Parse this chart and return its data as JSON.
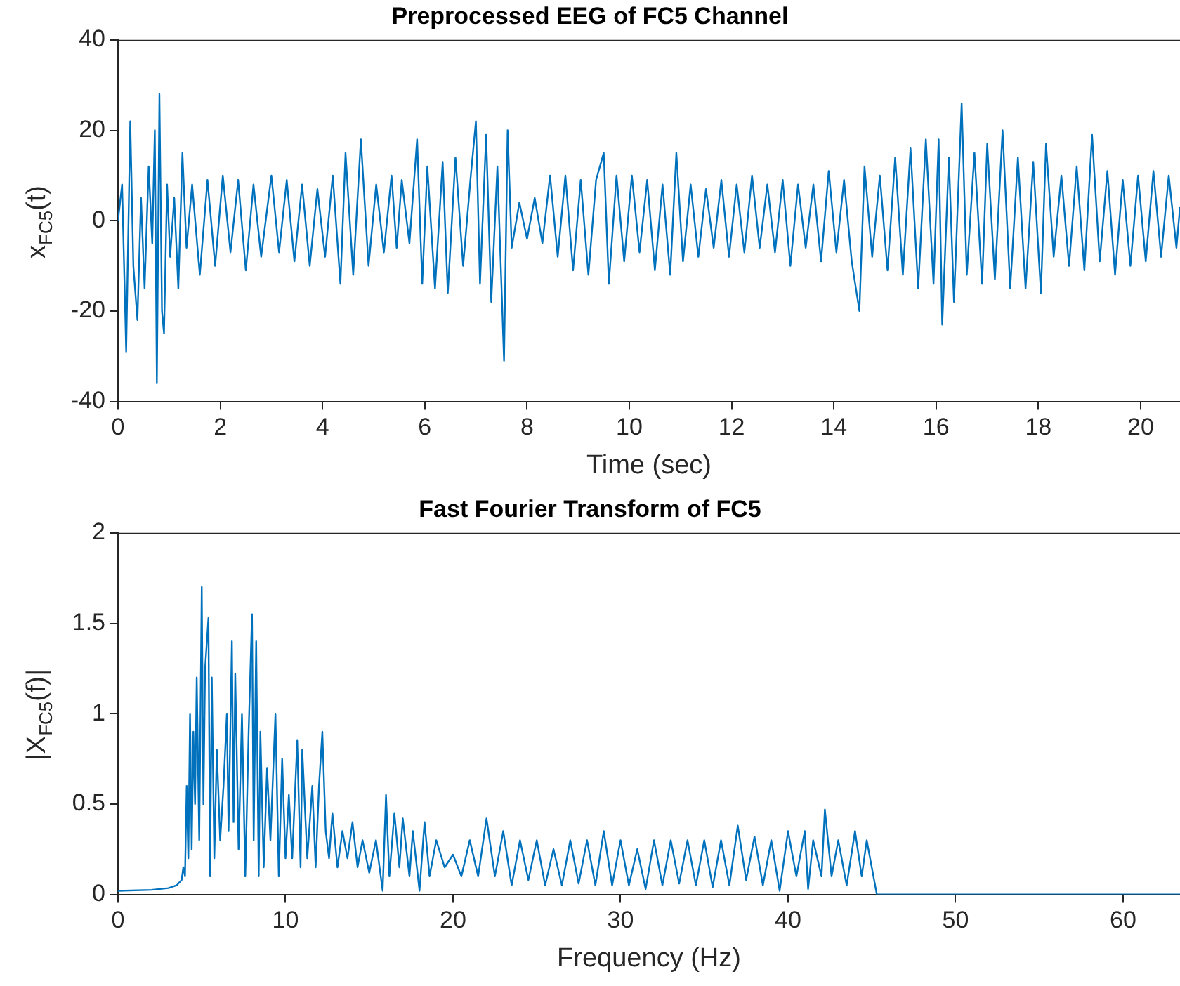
{
  "chart_data": [
    {
      "type": "line",
      "title": "Preprocessed EEG of FC5 Channel",
      "xlabel": "Time (sec)",
      "ylabel": "x$_{FC5}$(t)",
      "xlim": [
        0,
        20.77
      ],
      "ylim": [
        -40,
        40
      ],
      "xticks": [
        0,
        2,
        4,
        6,
        8,
        10,
        12,
        14,
        16,
        18,
        20
      ],
      "yticks": [
        -40,
        -20,
        0,
        20,
        40
      ],
      "grid": false,
      "marker": "none",
      "x": [
        0,
        0.08,
        0.16,
        0.24,
        0.3,
        0.38,
        0.45,
        0.52,
        0.6,
        0.67,
        0.72,
        0.76,
        0.81,
        0.86,
        0.9,
        0.96,
        1.02,
        1.1,
        1.18,
        1.26,
        1.34,
        1.45,
        1.6,
        1.75,
        1.9,
        2.05,
        2.2,
        2.35,
        2.5,
        2.65,
        2.8,
        3.0,
        3.15,
        3.3,
        3.45,
        3.6,
        3.75,
        3.9,
        4.05,
        4.2,
        4.35,
        4.45,
        4.6,
        4.75,
        4.9,
        5.05,
        5.2,
        5.35,
        5.45,
        5.55,
        5.7,
        5.85,
        5.95,
        6.05,
        6.2,
        6.35,
        6.45,
        6.6,
        6.75,
        6.9,
        7.0,
        7.08,
        7.2,
        7.3,
        7.42,
        7.55,
        7.62,
        7.7,
        7.85,
        8.0,
        8.15,
        8.3,
        8.45,
        8.6,
        8.75,
        8.9,
        9.05,
        9.2,
        9.35,
        9.5,
        9.6,
        9.75,
        9.9,
        10.05,
        10.2,
        10.35,
        10.5,
        10.65,
        10.8,
        10.92,
        11.05,
        11.2,
        11.35,
        11.5,
        11.65,
        11.8,
        11.95,
        12.1,
        12.25,
        12.4,
        12.55,
        12.7,
        12.85,
        13.0,
        13.15,
        13.3,
        13.45,
        13.6,
        13.75,
        13.9,
        14.05,
        14.2,
        14.35,
        14.5,
        14.6,
        14.75,
        14.9,
        15.05,
        15.2,
        15.35,
        15.5,
        15.65,
        15.8,
        15.95,
        16.05,
        16.12,
        16.25,
        16.35,
        16.5,
        16.6,
        16.75,
        16.9,
        17.0,
        17.15,
        17.3,
        17.45,
        17.6,
        17.75,
        17.9,
        18.05,
        18.15,
        18.3,
        18.45,
        18.6,
        18.75,
        18.9,
        19.05,
        19.2,
        19.35,
        19.5,
        19.65,
        19.8,
        19.95,
        20.1,
        20.25,
        20.4,
        20.55,
        20.7,
        20.77
      ],
      "series": [
        {
          "color": "#0072bd",
          "values": [
            0,
            8,
            -29,
            22,
            -10,
            -22,
            5,
            -15,
            12,
            -5,
            20,
            -36,
            28,
            -20,
            -25,
            8,
            -8,
            5,
            -15,
            15,
            -6,
            8,
            -12,
            9,
            -10,
            10,
            -7,
            9,
            -11,
            8,
            -8,
            10,
            -7,
            9,
            -9,
            8,
            -10,
            7,
            -8,
            10,
            -14,
            15,
            -12,
            18,
            -10,
            8,
            -7,
            10,
            -6,
            9,
            -5,
            18,
            -14,
            12,
            -15,
            13,
            -16,
            14,
            -10,
            10,
            22,
            -14,
            19,
            -18,
            12,
            -31,
            20,
            -6,
            4,
            -4,
            5,
            -5,
            10,
            -8,
            10,
            -11,
            9,
            -12,
            9,
            15,
            -14,
            10,
            -9,
            10,
            -7,
            9,
            -11,
            8,
            -12,
            15,
            -9,
            8,
            -8,
            7,
            -6,
            9,
            -8,
            8,
            -7,
            10,
            -6,
            8,
            -7,
            9,
            -10,
            8,
            -6,
            8,
            -9,
            11,
            -7,
            9,
            -9,
            -20,
            12,
            -8,
            10,
            -11,
            14,
            -12,
            16,
            -15,
            18,
            -14,
            18,
            -23,
            14,
            -18,
            26,
            -12,
            15,
            -14,
            17,
            -13,
            20,
            -15,
            14,
            -15,
            13,
            -16,
            17,
            -8,
            10,
            -10,
            12,
            -11,
            19,
            -9,
            11,
            -12,
            9,
            -10,
            10,
            -9,
            11,
            -8,
            10,
            -6,
            3
          ]
        }
      ]
    },
    {
      "type": "line",
      "title": "Fast Fourier Transform of FC5",
      "xlabel": "Frequency (Hz)",
      "ylabel": "|X$_{FC5}$(f)|",
      "xlim": [
        0,
        63.4
      ],
      "ylim": [
        0,
        2
      ],
      "xticks": [
        0,
        10,
        20,
        30,
        40,
        50,
        60
      ],
      "yticks": [
        0,
        0.5,
        1,
        1.5,
        2
      ],
      "grid": false,
      "marker": "none",
      "x": [
        0,
        2,
        3,
        3.5,
        3.8,
        3.9,
        4.0,
        4.1,
        4.2,
        4.3,
        4.4,
        4.5,
        4.6,
        4.7,
        4.85,
        5.0,
        5.1,
        5.2,
        5.4,
        5.5,
        5.6,
        5.75,
        5.9,
        6.1,
        6.3,
        6.5,
        6.6,
        6.8,
        6.9,
        7.0,
        7.2,
        7.4,
        7.6,
        7.8,
        8.0,
        8.1,
        8.25,
        8.4,
        8.5,
        8.7,
        8.9,
        9.1,
        9.4,
        9.6,
        9.8,
        10.0,
        10.2,
        10.4,
        10.7,
        10.9,
        11.0,
        11.3,
        11.6,
        11.8,
        12.0,
        12.2,
        12.4,
        12.6,
        12.8,
        13.1,
        13.4,
        13.7,
        14.0,
        14.3,
        14.6,
        15.0,
        15.4,
        15.8,
        16.0,
        16.2,
        16.5,
        16.8,
        17.0,
        17.4,
        17.6,
        18.0,
        18.3,
        18.6,
        19.0,
        19.5,
        20.0,
        20.5,
        21.0,
        21.5,
        22.0,
        22.5,
        23.0,
        23.5,
        24.0,
        24.5,
        25.0,
        25.5,
        26.0,
        26.5,
        27.0,
        27.5,
        28.0,
        28.5,
        29.0,
        29.5,
        30.0,
        30.5,
        31.0,
        31.5,
        32.0,
        32.5,
        33.0,
        33.5,
        34.0,
        34.5,
        35.0,
        35.5,
        36.0,
        36.5,
        37.0,
        37.5,
        38.0,
        38.5,
        39.0,
        39.5,
        40.0,
        40.5,
        41.0,
        41.2,
        41.5,
        42.0,
        42.2,
        42.6,
        43.0,
        43.5,
        44.0,
        44.4,
        44.7,
        45.0,
        45.3,
        63.4
      ],
      "series": [
        {
          "color": "#0072bd",
          "values": [
            0.02,
            0.025,
            0.035,
            0.05,
            0.08,
            0.15,
            0.1,
            0.6,
            0.2,
            1.0,
            0.25,
            0.9,
            0.5,
            1.2,
            0.3,
            1.7,
            0.5,
            1.25,
            1.53,
            0.1,
            1.2,
            0.2,
            0.8,
            0.3,
            0.6,
            1.0,
            0.35,
            1.4,
            0.4,
            1.22,
            0.25,
            1.0,
            0.1,
            0.9,
            1.55,
            0.3,
            1.4,
            0.1,
            0.9,
            0.15,
            0.7,
            0.3,
            1.0,
            0.1,
            0.75,
            0.2,
            0.55,
            0.2,
            0.85,
            0.15,
            0.8,
            0.2,
            0.6,
            0.15,
            0.6,
            0.9,
            0.35,
            0.2,
            0.45,
            0.15,
            0.35,
            0.2,
            0.4,
            0.15,
            0.3,
            0.12,
            0.3,
            0.02,
            0.55,
            0.1,
            0.45,
            0.15,
            0.42,
            0.1,
            0.35,
            0.02,
            0.4,
            0.1,
            0.3,
            0.15,
            0.22,
            0.1,
            0.3,
            0.1,
            0.42,
            0.1,
            0.35,
            0.05,
            0.3,
            0.08,
            0.3,
            0.05,
            0.25,
            0.05,
            0.3,
            0.06,
            0.3,
            0.05,
            0.35,
            0.05,
            0.3,
            0.05,
            0.25,
            0.03,
            0.3,
            0.05,
            0.3,
            0.06,
            0.3,
            0.05,
            0.3,
            0.04,
            0.3,
            0.05,
            0.38,
            0.08,
            0.32,
            0.05,
            0.3,
            0.02,
            0.35,
            0.1,
            0.35,
            0.03,
            0.3,
            0.1,
            0.47,
            0.1,
            0.3,
            0.05,
            0.35,
            0.1,
            0.3,
            0.15,
            0,
            0
          ]
        }
      ]
    }
  ]
}
